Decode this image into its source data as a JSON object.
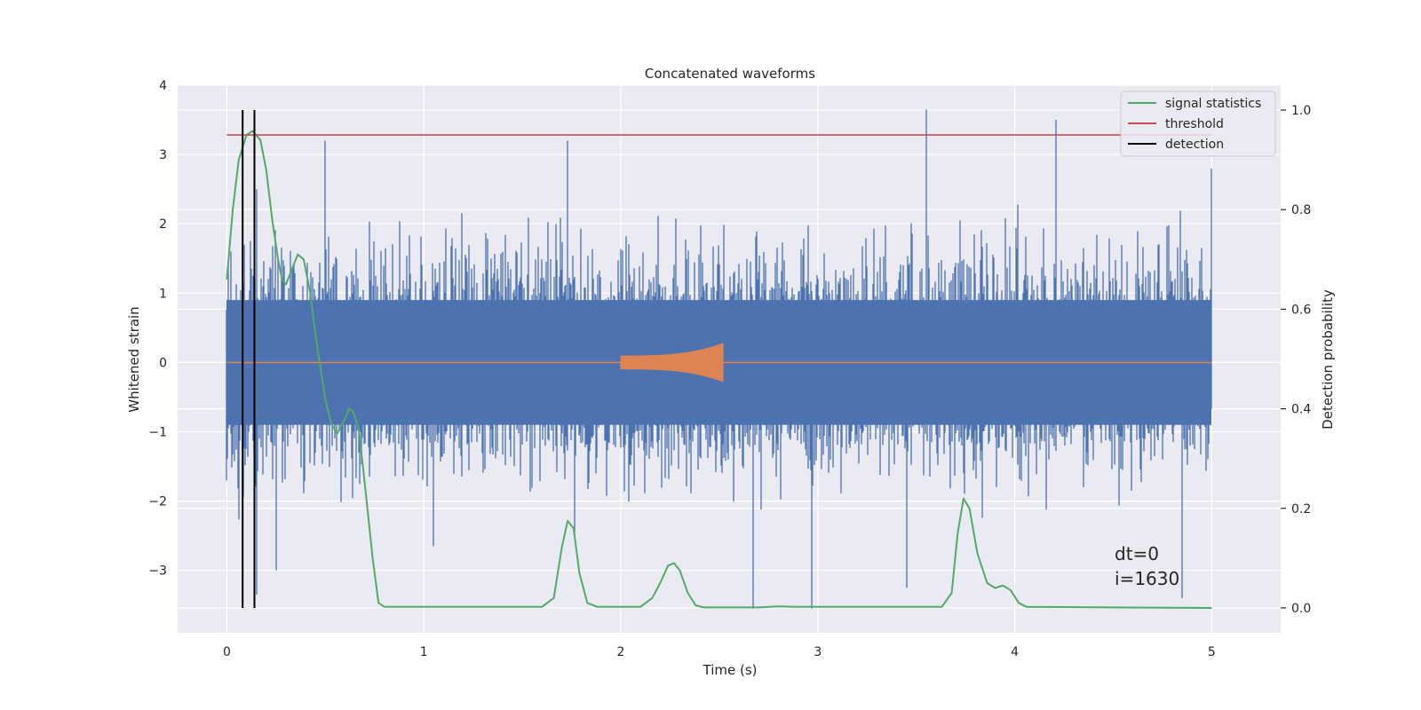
{
  "chart_data": {
    "type": "line",
    "title": "Concatenated waveforms",
    "xlabel": "Time (s)",
    "ylabel": "Whitened strain",
    "y2label": "Detection probability",
    "xlim": [
      -0.25,
      5.35
    ],
    "ylim": [
      -3.9,
      4.0
    ],
    "y2lim": [
      -0.05,
      1.05
    ],
    "xticks": [
      0,
      1,
      2,
      3,
      4,
      5
    ],
    "xtick_labels": [
      "0",
      "1",
      "2",
      "3",
      "4",
      "5"
    ],
    "yticks": [
      -3,
      -2,
      -1,
      0,
      1,
      2,
      3,
      4
    ],
    "ytick_labels": [
      "−3",
      "−2",
      "−1",
      "0",
      "1",
      "2",
      "3",
      "4"
    ],
    "y2ticks": [
      0.0,
      0.2,
      0.4,
      0.6,
      0.8,
      1.0
    ],
    "y2tick_labels": [
      "0.0",
      "0.2",
      "0.4",
      "0.6",
      "0.8",
      "1.0"
    ],
    "grid": true,
    "legend_position": "top-right",
    "background": "#eaeaf2",
    "series": [
      {
        "key": "strain",
        "color": "#4c72b0",
        "axis": "left",
        "x_range": [
          0,
          5
        ],
        "typical_envelope": [
          -0.9,
          0.9
        ],
        "extreme_range": [
          -3.6,
          3.65
        ],
        "peaks": [
          [
            0.02,
            1.6
          ],
          [
            0.09,
            1.7
          ],
          [
            0.15,
            2.5
          ],
          [
            0.5,
            3.2
          ],
          [
            1.67,
            2.0
          ],
          [
            1.73,
            3.2
          ],
          [
            3.55,
            3.65
          ],
          [
            4.21,
            3.5
          ],
          [
            5.0,
            2.8
          ]
        ],
        "troughs": [
          [
            0.15,
            -3.35
          ],
          [
            0.25,
            -3.0
          ],
          [
            1.05,
            -2.65
          ],
          [
            2.67,
            -3.55
          ],
          [
            2.97,
            -3.55
          ],
          [
            3.45,
            -3.25
          ],
          [
            4.85,
            -3.4
          ]
        ]
      },
      {
        "key": "injected",
        "color": "#dd8452",
        "axis": "left",
        "baseline": [
          0,
          5,
          0
        ],
        "chirp": {
          "t_start": 2.0,
          "t_end": 2.52,
          "amp_start": 0.1,
          "amp_end": 0.28
        }
      },
      {
        "name": "signal statistics",
        "color": "#55a868",
        "axis": "right",
        "points": [
          [
            0,
            0.66
          ],
          [
            0.03,
            0.8
          ],
          [
            0.06,
            0.9
          ],
          [
            0.1,
            0.95
          ],
          [
            0.13,
            0.958
          ],
          [
            0.17,
            0.94
          ],
          [
            0.2,
            0.88
          ],
          [
            0.23,
            0.78
          ],
          [
            0.26,
            0.7
          ],
          [
            0.28,
            0.66
          ],
          [
            0.3,
            0.65
          ],
          [
            0.33,
            0.68
          ],
          [
            0.36,
            0.71
          ],
          [
            0.39,
            0.7
          ],
          [
            0.42,
            0.64
          ],
          [
            0.46,
            0.52
          ],
          [
            0.5,
            0.42
          ],
          [
            0.53,
            0.37
          ],
          [
            0.56,
            0.35
          ],
          [
            0.6,
            0.38
          ],
          [
            0.62,
            0.4
          ],
          [
            0.64,
            0.395
          ],
          [
            0.67,
            0.36
          ],
          [
            0.7,
            0.25
          ],
          [
            0.74,
            0.1
          ],
          [
            0.77,
            0.01
          ],
          [
            0.8,
            0.002
          ],
          [
            1.6,
            0.002
          ],
          [
            1.66,
            0.02
          ],
          [
            1.7,
            0.12
          ],
          [
            1.73,
            0.175
          ],
          [
            1.76,
            0.16
          ],
          [
            1.79,
            0.07
          ],
          [
            1.83,
            0.01
          ],
          [
            1.88,
            0.002
          ],
          [
            2.1,
            0.002
          ],
          [
            2.16,
            0.02
          ],
          [
            2.2,
            0.05
          ],
          [
            2.24,
            0.085
          ],
          [
            2.27,
            0.09
          ],
          [
            2.3,
            0.075
          ],
          [
            2.34,
            0.03
          ],
          [
            2.38,
            0.005
          ],
          [
            2.42,
            0.001
          ],
          [
            2.7,
            0.001
          ],
          [
            2.8,
            0.003
          ],
          [
            2.9,
            0.002
          ],
          [
            3.63,
            0.002
          ],
          [
            3.68,
            0.03
          ],
          [
            3.71,
            0.15
          ],
          [
            3.74,
            0.22
          ],
          [
            3.77,
            0.2
          ],
          [
            3.81,
            0.11
          ],
          [
            3.86,
            0.05
          ],
          [
            3.9,
            0.04
          ],
          [
            3.94,
            0.045
          ],
          [
            3.98,
            0.035
          ],
          [
            4.02,
            0.01
          ],
          [
            4.06,
            0.002
          ],
          [
            5.0,
            0.0
          ]
        ]
      },
      {
        "name": "threshold",
        "color": "#c44e52",
        "axis": "right",
        "x_range": [
          0,
          5
        ],
        "value": 0.95
      },
      {
        "name": "detection",
        "color": "#000000",
        "axis": "right",
        "x_values": [
          0.08,
          0.14
        ],
        "y_range": [
          0.0,
          1.0
        ]
      }
    ],
    "annotations": [
      "dt=0",
      "i=1630"
    ]
  }
}
